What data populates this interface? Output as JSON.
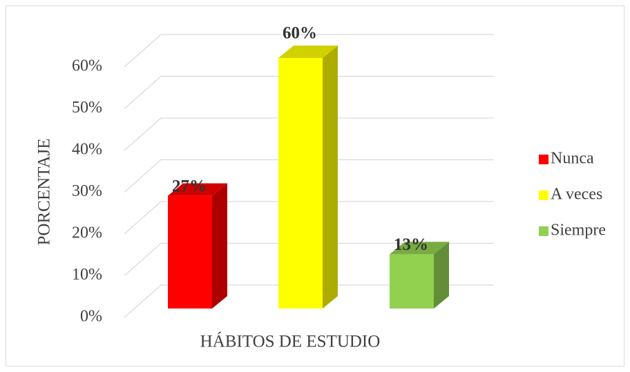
{
  "chart_data": {
    "type": "bar3d",
    "categories": [
      "HÁBITOS DE ESTUDIO"
    ],
    "y_label": "PORCENTAJE",
    "series": [
      {
        "name": "Nunca",
        "color": "#ff0000",
        "values": [
          27
        ],
        "value_labels": [
          "27%"
        ]
      },
      {
        "name": "A veces",
        "color": "#ffff00",
        "values": [
          60
        ],
        "value_labels": [
          "60%"
        ]
      },
      {
        "name": "Siempre",
        "color": "#92d050",
        "values": [
          13
        ],
        "value_labels": [
          "13%"
        ]
      }
    ],
    "ylim": [
      0,
      60
    ],
    "yticks": [
      {
        "value": 0,
        "label": "0%"
      },
      {
        "value": 10,
        "label": "10%"
      },
      {
        "value": 20,
        "label": "20%"
      },
      {
        "value": 30,
        "label": "30%"
      },
      {
        "value": 40,
        "label": "40%"
      },
      {
        "value": 50,
        "label": "50%"
      },
      {
        "value": 60,
        "label": "60%"
      }
    ],
    "grid": true,
    "legend": "right"
  }
}
